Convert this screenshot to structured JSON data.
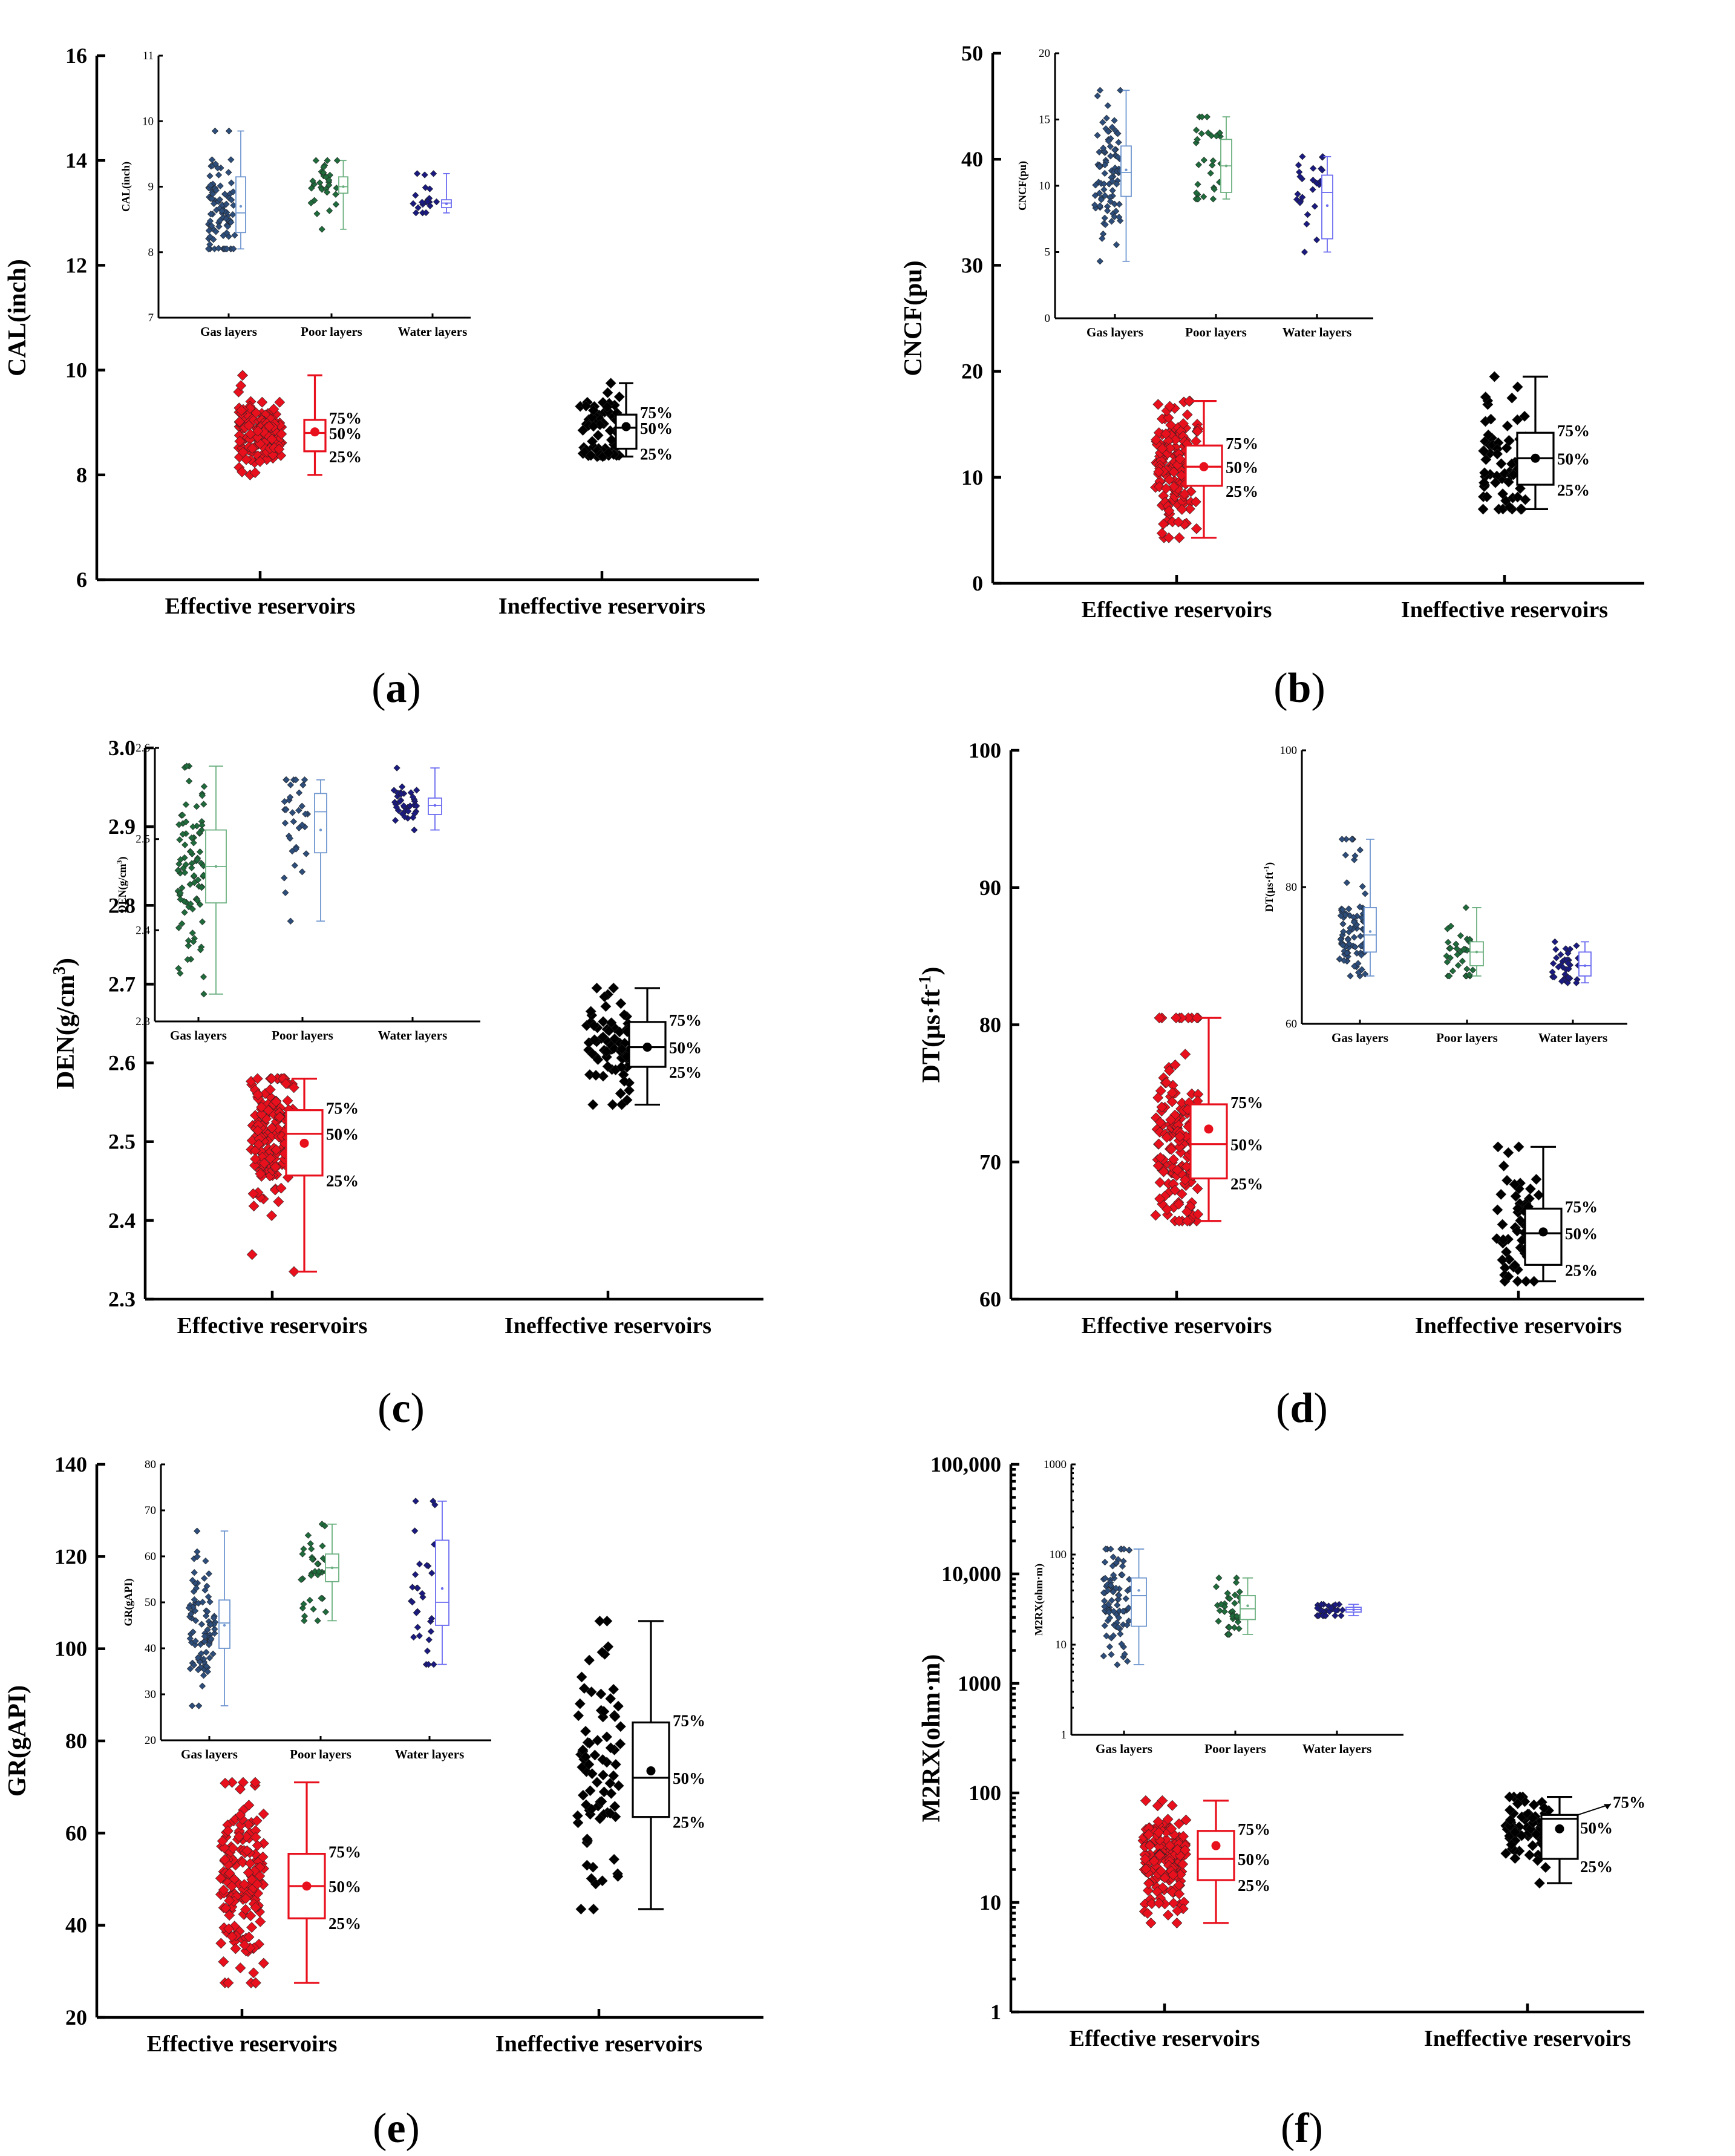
{
  "chart_data": [
    {
      "id": "a",
      "type": "box-scatter",
      "panel_label": "(a)",
      "scale": "linear",
      "ylabel": "CAL(inch)",
      "ylim": [
        6,
        16
      ],
      "yticks": [
        "6",
        "8",
        "10",
        "12",
        "14",
        "16"
      ],
      "categories": [
        "Effective reservoirs",
        "Ineffective reservoirs"
      ],
      "percent_labels": [
        "75%",
        "50%",
        "25%"
      ],
      "series": [
        {
          "name": "Effective reservoirs",
          "color": "#e8101d",
          "min": 8.0,
          "q1": 8.45,
          "median": 8.8,
          "mean": 8.82,
          "q3": 9.05,
          "max": 9.9,
          "count": 160,
          "clusters": [
            [
              8.8,
              0.3,
              0.8
            ]
          ]
        },
        {
          "name": "Ineffective reservoirs",
          "color": "#000000",
          "min": 8.35,
          "q1": 8.5,
          "median": 8.9,
          "mean": 8.92,
          "q3": 9.15,
          "max": 9.75,
          "count": 70,
          "clusters": [
            [
              8.45,
              0.08,
              0.4
            ],
            [
              9.05,
              0.3,
              0.6
            ]
          ]
        }
      ],
      "inset": {
        "ylabel": "CAL(inch)",
        "ylim": [
          7,
          11
        ],
        "yticks": [
          "7",
          "8",
          "9",
          "10",
          "11"
        ],
        "categories": [
          "Gas layers",
          "Poor layers",
          "Water layers"
        ],
        "series": [
          {
            "name": "Gas layers",
            "color": "#2d4d7a",
            "boxcolor": "#6f96cf",
            "min": 8.05,
            "q1": 8.3,
            "median": 8.6,
            "mean": 8.7,
            "q3": 9.15,
            "max": 9.85,
            "count": 90,
            "clusters": [
              [
                8.6,
                0.45,
                1
              ]
            ]
          },
          {
            "name": "Poor layers",
            "color": "#1f6b3b",
            "boxcolor": "#6cb080",
            "min": 8.35,
            "q1": 8.9,
            "median": 9.0,
            "mean": 9.0,
            "q3": 9.15,
            "max": 9.4,
            "count": 30,
            "clusters": [
              [
                9.0,
                0.25,
                1
              ]
            ]
          },
          {
            "name": "Water layers",
            "color": "#1a1a80",
            "boxcolor": "#6b6bf0",
            "min": 8.6,
            "q1": 8.68,
            "median": 8.75,
            "mean": 8.74,
            "q3": 8.8,
            "max": 9.2,
            "count": 20,
            "clusters": [
              [
                8.75,
                0.08,
                0.8
              ],
              [
                9.05,
                0.12,
                0.2
              ]
            ]
          }
        ]
      }
    },
    {
      "id": "b",
      "type": "box-scatter",
      "panel_label": "(b)",
      "scale": "linear",
      "ylabel": "CNCF(pu)",
      "ylim": [
        0,
        50
      ],
      "yticks": [
        "0",
        "10",
        "20",
        "30",
        "40",
        "50"
      ],
      "categories": [
        "Effective reservoirs",
        "Ineffective reservoirs"
      ],
      "percent_labels": [
        "75%",
        "50%",
        "25%"
      ],
      "series": [
        {
          "name": "Effective reservoirs",
          "color": "#e8101d",
          "min": 4.3,
          "q1": 9.2,
          "median": 11.0,
          "mean": 11.0,
          "q3": 13.0,
          "max": 17.2,
          "count": 160,
          "clusters": [
            [
              11.0,
              2.8,
              1
            ]
          ]
        },
        {
          "name": "Ineffective reservoirs",
          "color": "#000000",
          "min": 7.0,
          "q1": 9.3,
          "median": 11.8,
          "mean": 11.8,
          "q3": 14.2,
          "max": 19.5,
          "count": 70,
          "clusters": [
            [
              11.8,
              3.2,
              1
            ]
          ]
        }
      ],
      "inset": {
        "ylabel": "CNCF(pu)",
        "ylim": [
          0,
          20
        ],
        "yticks": [
          "0",
          "5",
          "10",
          "15",
          "20"
        ],
        "categories": [
          "Gas layers",
          "Poor layers",
          "Water layers"
        ],
        "series": [
          {
            "name": "Gas layers",
            "color": "#2d4d7a",
            "boxcolor": "#6f96cf",
            "min": 4.3,
            "q1": 9.2,
            "median": 11.0,
            "mean": 11.2,
            "q3": 13.0,
            "max": 17.2,
            "count": 90,
            "clusters": [
              [
                11.0,
                2.6,
                1
              ]
            ]
          },
          {
            "name": "Poor layers",
            "color": "#1f6b3b",
            "boxcolor": "#6cb080",
            "min": 9.0,
            "q1": 9.5,
            "median": 11.5,
            "mean": 11.5,
            "q3": 13.5,
            "max": 15.2,
            "count": 30,
            "clusters": [
              [
                11.5,
                1.8,
                1
              ]
            ]
          },
          {
            "name": "Water layers",
            "color": "#1a1a80",
            "boxcolor": "#6b6bf0",
            "min": 5.0,
            "q1": 6.0,
            "median": 9.5,
            "mean": 8.5,
            "q3": 10.8,
            "max": 12.2,
            "count": 25,
            "clusters": [
              [
                9.5,
                2.2,
                1
              ]
            ]
          }
        ]
      }
    },
    {
      "id": "c",
      "type": "box-scatter",
      "panel_label": "(c)",
      "scale": "linear",
      "ylabel": "DEN(g/cm3)",
      "ylim": [
        2.3,
        3.0
      ],
      "yticks": [
        "2.3",
        "2.4",
        "2.5",
        "2.6",
        "2.7",
        "2.8",
        "2.9",
        "3.0"
      ],
      "categories": [
        "Effective reservoirs",
        "Ineffective reservoirs"
      ],
      "percent_labels": [
        "75%",
        "50%",
        "25%"
      ],
      "series": [
        {
          "name": "Effective reservoirs",
          "color": "#e8101d",
          "min": 2.335,
          "q1": 2.457,
          "median": 2.51,
          "mean": 2.498,
          "q3": 2.54,
          "max": 2.58,
          "count": 160,
          "clusters": [
            [
              2.51,
              0.045,
              1
            ]
          ]
        },
        {
          "name": "Ineffective reservoirs",
          "color": "#000000",
          "min": 2.547,
          "q1": 2.595,
          "median": 2.62,
          "mean": 2.62,
          "q3": 2.652,
          "max": 2.695,
          "count": 70,
          "clusters": [
            [
              2.62,
              0.03,
              1
            ]
          ]
        }
      ],
      "inset": {
        "ylabel": "DEN(g/cm3)",
        "ylim": [
          2.3,
          2.6
        ],
        "yticks": [
          "2.3",
          "2.4",
          "2.5",
          "2.6"
        ],
        "categories": [
          "Gas layers",
          "Poor layers",
          "Water layers"
        ],
        "series": [
          {
            "name": "Gas layers",
            "color": "#1f6b3b",
            "boxcolor": "#6cb080",
            "min": 2.33,
            "q1": 2.43,
            "median": 2.47,
            "mean": 2.47,
            "q3": 2.51,
            "max": 2.58,
            "count": 90,
            "clusters": [
              [
                2.47,
                0.05,
                1
              ]
            ]
          },
          {
            "name": "Poor layers",
            "color": "#2d4d7a",
            "boxcolor": "#6f96cf",
            "min": 2.41,
            "q1": 2.485,
            "median": 2.53,
            "mean": 2.51,
            "q3": 2.55,
            "max": 2.565,
            "count": 35,
            "clusters": [
              [
                2.52,
                0.04,
                1
              ]
            ]
          },
          {
            "name": "Water layers",
            "color": "#1a1a80",
            "boxcolor": "#6b6bf0",
            "min": 2.51,
            "q1": 2.527,
            "median": 2.537,
            "mean": 2.537,
            "q3": 2.545,
            "max": 2.578,
            "count": 35,
            "clusters": [
              [
                2.537,
                0.015,
                1
              ]
            ]
          }
        ]
      }
    },
    {
      "id": "d",
      "type": "box-scatter",
      "panel_label": "(d)",
      "scale": "linear",
      "ylabel": "DT(μs·ft-1)",
      "ylim": [
        60,
        100
      ],
      "yticks": [
        "60",
        "70",
        "80",
        "90",
        "100"
      ],
      "categories": [
        "Effective reservoirs",
        "Ineffective reservoirs"
      ],
      "percent_labels": [
        "75%",
        "50%",
        "25%"
      ],
      "series": [
        {
          "name": "Effective reservoirs",
          "color": "#e8101d",
          "min": 65.7,
          "q1": 68.8,
          "median": 71.3,
          "mean": 72.4,
          "q3": 74.2,
          "max": 80.5,
          "count": 160,
          "clusters": [
            [
              71.0,
              3.0,
              0.95
            ],
            [
              88.0,
              3.0,
              0.05
            ]
          ]
        },
        {
          "name": "Ineffective reservoirs",
          "color": "#000000",
          "min": 61.3,
          "q1": 62.5,
          "median": 64.8,
          "mean": 64.9,
          "q3": 66.6,
          "max": 71.1,
          "count": 60,
          "clusters": [
            [
              65.0,
              2.4,
              1
            ]
          ]
        }
      ],
      "inset": {
        "ylabel": "DT(μs·ft-1)",
        "ylim": [
          60,
          100
        ],
        "yticks": [
          "60",
          "80",
          "100"
        ],
        "categories": [
          "Gas layers",
          "Poor layers",
          "Water layers"
        ],
        "series": [
          {
            "name": "Gas layers",
            "color": "#2d4d7a",
            "boxcolor": "#6f96cf",
            "min": 67.0,
            "q1": 70.5,
            "median": 73.0,
            "mean": 73.5,
            "q3": 77.0,
            "max": 87.0,
            "count": 90,
            "clusters": [
              [
                73.0,
                3.0,
                0.9
              ],
              [
                86.0,
                4.0,
                0.1
              ]
            ]
          },
          {
            "name": "Poor layers",
            "color": "#1f6b3b",
            "boxcolor": "#6cb080",
            "min": 67.0,
            "q1": 68.5,
            "median": 70.5,
            "mean": 70.5,
            "q3": 72.0,
            "max": 77.0,
            "count": 35,
            "clusters": [
              [
                70.5,
                2.2,
                1
              ]
            ]
          },
          {
            "name": "Water layers",
            "color": "#1a1a80",
            "boxcolor": "#6b6bf0",
            "min": 66.0,
            "q1": 67.0,
            "median": 68.5,
            "mean": 68.5,
            "q3": 70.5,
            "max": 72.0,
            "count": 35,
            "clusters": [
              [
                68.5,
                1.7,
                1
              ]
            ]
          }
        ]
      }
    },
    {
      "id": "e",
      "type": "box-scatter",
      "panel_label": "(e)",
      "scale": "linear",
      "ylabel": "GR(gAPI)",
      "ylim": [
        20,
        140
      ],
      "yticks": [
        "20",
        "40",
        "60",
        "80",
        "100",
        "120",
        "140"
      ],
      "categories": [
        "Effective reservoirs",
        "Ineffective reservoirs"
      ],
      "percent_labels": [
        "75%",
        "50%",
        "25%"
      ],
      "series": [
        {
          "name": "Effective reservoirs",
          "color": "#e8101d",
          "min": 27.5,
          "q1": 41.5,
          "median": 48.5,
          "mean": 48.5,
          "q3": 55.5,
          "max": 71.0,
          "count": 160,
          "clusters": [
            [
              48.5,
              9.0,
              1
            ]
          ]
        },
        {
          "name": "Ineffective reservoirs",
          "color": "#000000",
          "min": 43.5,
          "q1": 63.5,
          "median": 72.0,
          "mean": 73.5,
          "q3": 84.0,
          "max": 106.0,
          "count": 80,
          "clusters": [
            [
              72.0,
              13.0,
              1
            ]
          ]
        }
      ],
      "inset": {
        "ylabel": "GR(gAPI)",
        "ylim": [
          20,
          80
        ],
        "yticks": [
          "20",
          "30",
          "40",
          "50",
          "60",
          "70",
          "80"
        ],
        "categories": [
          "Gas layers",
          "Poor layers",
          "Water layers"
        ],
        "series": [
          {
            "name": "Gas layers",
            "color": "#2d4d7a",
            "boxcolor": "#6f96cf",
            "min": 27.5,
            "q1": 40.0,
            "median": 45.5,
            "mean": 45.0,
            "q3": 50.5,
            "max": 65.5,
            "count": 90,
            "clusters": [
              [
                45.0,
                7.5,
                1
              ]
            ]
          },
          {
            "name": "Poor layers",
            "color": "#1f6b3b",
            "boxcolor": "#6cb080",
            "min": 46.0,
            "q1": 54.5,
            "median": 57.5,
            "mean": 57.5,
            "q3": 60.5,
            "max": 67.0,
            "count": 35,
            "clusters": [
              [
                57.5,
                4.8,
                1
              ]
            ]
          },
          {
            "name": "Water layers",
            "color": "#1a1a80",
            "boxcolor": "#6b6bf0",
            "min": 36.5,
            "q1": 45.0,
            "median": 50.0,
            "mean": 53.0,
            "q3": 63.5,
            "max": 72.0,
            "count": 30,
            "clusters": [
              [
                52.0,
                10.0,
                1
              ]
            ]
          }
        ]
      }
    },
    {
      "id": "f",
      "type": "box-scatter",
      "panel_label": "(f)",
      "scale": "log",
      "ylabel": "M2RX(ohm·m)",
      "ylim": [
        1,
        100000
      ],
      "yticks": [
        "1",
        "10",
        "100",
        "1000",
        "10,000",
        "100,000"
      ],
      "categories": [
        "Effective reservoirs",
        "Ineffective reservoirs"
      ],
      "percent_labels": [
        "75%",
        "50%",
        "25%"
      ],
      "series": [
        {
          "name": "Effective reservoirs",
          "color": "#e8101d",
          "min": 6.5,
          "q1": 16.0,
          "median": 25.0,
          "mean": 33.0,
          "q3": 45.0,
          "max": 85.0,
          "count": 160,
          "clusters": [
            [
              22.0,
              0.25,
              1
            ]
          ]
        },
        {
          "name": "Ineffective reservoirs",
          "color": "#000000",
          "min": 15.0,
          "q1": 25.0,
          "median": 58.0,
          "mean": 47.0,
          "q3": 63.0,
          "max": 92.0,
          "count": 70,
          "clusters": [
            [
              48.0,
              0.15,
              1
            ]
          ]
        }
      ],
      "inset": {
        "ylabel": "M2RX(ohm·m)",
        "ylim": [
          1,
          1000
        ],
        "yticks": [
          "1",
          "10",
          "100",
          "1000"
        ],
        "categories": [
          "Gas layers",
          "Poor layers",
          "Water layers"
        ],
        "series": [
          {
            "name": "Gas layers",
            "color": "#2d4d7a",
            "boxcolor": "#6f96cf",
            "min": 6.0,
            "q1": 16.0,
            "median": 35.0,
            "mean": 40.0,
            "q3": 55.0,
            "max": 115.0,
            "count": 90,
            "clusters": [
              [
                30.0,
                0.3,
                1
              ]
            ]
          },
          {
            "name": "Poor layers",
            "color": "#1f6b3b",
            "boxcolor": "#6cb080",
            "min": 13.0,
            "q1": 19.0,
            "median": 25.0,
            "mean": 27.0,
            "q3": 35.0,
            "max": 55.0,
            "count": 35,
            "clusters": [
              [
                26.0,
                0.18,
                1
              ]
            ]
          },
          {
            "name": "Water layers",
            "color": "#1a1a80",
            "boxcolor": "#6b6bf0",
            "min": 21.0,
            "q1": 23.0,
            "median": 24.5,
            "mean": 24.5,
            "q3": 26.0,
            "max": 28.0,
            "count": 30,
            "clusters": [
              [
                23.5,
                0.06,
                0.9
              ],
              [
                15.0,
                0.08,
                0.1
              ]
            ]
          }
        ]
      }
    }
  ]
}
